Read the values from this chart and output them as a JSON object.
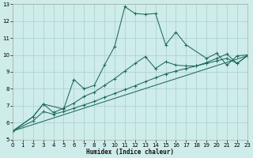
{
  "xlabel": "Humidex (Indice chaleur)",
  "bg_color": "#ceecea",
  "grid_color": "#aed4d0",
  "line_color": "#1e6b5a",
  "xlim": [
    0,
    23
  ],
  "ylim": [
    5,
    13
  ],
  "xticks": [
    0,
    1,
    2,
    3,
    4,
    5,
    6,
    7,
    8,
    9,
    10,
    11,
    12,
    13,
    14,
    15,
    16,
    17,
    18,
    19,
    20,
    21,
    22,
    23
  ],
  "yticks": [
    5,
    6,
    7,
    8,
    9,
    10,
    11,
    12,
    13
  ],
  "curve1": {
    "x": [
      0,
      2,
      3,
      5,
      6,
      7,
      8,
      9,
      10,
      11,
      12,
      13,
      14,
      15,
      16,
      17,
      19,
      20,
      21,
      22,
      23
    ],
    "y": [
      5.5,
      6.35,
      7.1,
      6.8,
      8.55,
      8.0,
      8.2,
      9.4,
      10.5,
      12.85,
      12.45,
      12.4,
      12.45,
      10.6,
      11.35,
      10.6,
      9.8,
      10.1,
      9.4,
      9.95,
      10.0
    ]
  },
  "curve2": {
    "x": [
      0,
      2,
      3,
      4,
      5,
      6,
      7,
      8,
      9,
      10,
      11,
      12,
      13,
      14,
      15,
      16,
      17,
      18,
      19,
      20,
      21,
      22,
      23
    ],
    "y": [
      5.5,
      6.35,
      7.1,
      6.6,
      6.85,
      7.15,
      7.55,
      7.8,
      8.2,
      8.6,
      9.05,
      9.5,
      9.9,
      9.2,
      9.6,
      9.4,
      9.35,
      9.35,
      9.55,
      9.8,
      10.05,
      9.5,
      9.95
    ]
  },
  "curve3": {
    "x": [
      0,
      2,
      3,
      4,
      5,
      6,
      7,
      8,
      9,
      10,
      11,
      12,
      13,
      14,
      15,
      16,
      17,
      18,
      19,
      20,
      21,
      22,
      23
    ],
    "y": [
      5.5,
      6.1,
      6.65,
      6.5,
      6.65,
      6.85,
      7.05,
      7.25,
      7.5,
      7.72,
      7.95,
      8.18,
      8.42,
      8.65,
      8.88,
      9.05,
      9.2,
      9.35,
      9.5,
      9.65,
      9.8,
      9.5,
      9.95
    ]
  },
  "line_diag": {
    "x": [
      0,
      23
    ],
    "y": [
      5.5,
      9.95
    ]
  }
}
